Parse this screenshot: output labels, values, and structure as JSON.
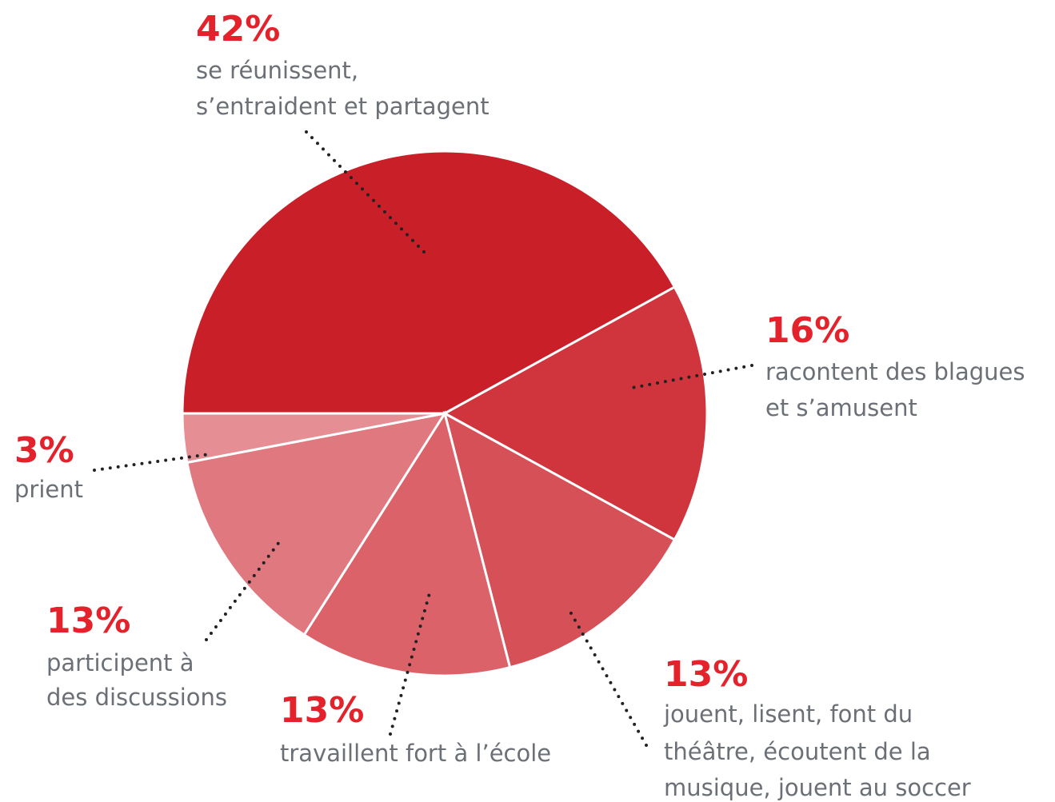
{
  "chart_data": {
    "type": "pie",
    "categories": [
      [
        "se réunissent,",
        "s’entraident et partagent"
      ],
      [
        "racontent des blagues",
        "et s’amusent"
      ],
      [
        "jouent, lisent, font du",
        "théâtre, écoutent de la",
        "musique, jouent au soccer"
      ],
      [
        "travaillent fort à l’école"
      ],
      [
        "participent à",
        "des discussions"
      ],
      [
        "prient"
      ]
    ],
    "values": [
      42,
      16,
      13,
      13,
      13,
      3
    ],
    "value_labels": [
      "42%",
      "16%",
      "13%",
      "13%",
      "13%",
      "3%"
    ],
    "colors": [
      "#c91f28",
      "#d0343c",
      "#d65058",
      "#dc6269",
      "#e07880",
      "#e58f94"
    ]
  }
}
